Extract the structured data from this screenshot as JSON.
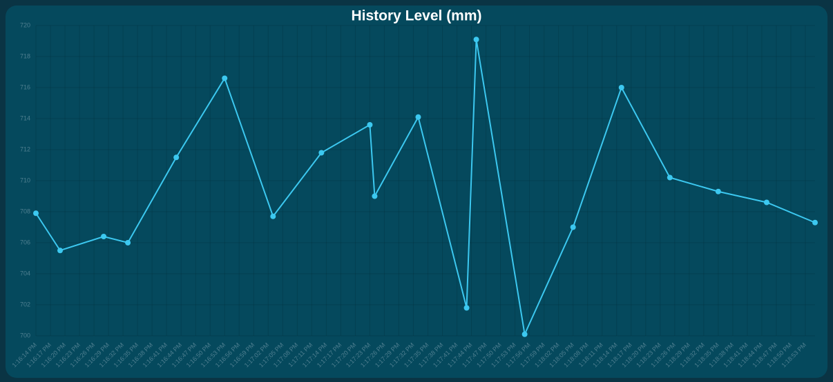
{
  "chart_data": {
    "type": "line",
    "title": "History Level (mm)",
    "x": [
      "1:16:14 PM",
      "1:16:19 PM",
      "1:16:28 PM",
      "1:16:33 PM",
      "1:16:43 PM",
      "1:16:53 PM",
      "1:17:03 PM",
      "1:17:13 PM",
      "1:17:23 PM",
      "1:17:24 PM",
      "1:17:33 PM",
      "1:17:43 PM",
      "1:17:45 PM",
      "1:17:55 PM",
      "1:18:05 PM",
      "1:18:15 PM",
      "1:18:25 PM",
      "1:18:35 PM",
      "1:18:45 PM",
      "1:18:55 PM"
    ],
    "values": [
      707.9,
      705.5,
      706.4,
      706.0,
      711.5,
      716.6,
      707.7,
      711.8,
      713.6,
      709.0,
      714.1,
      701.8,
      719.1,
      700.1,
      707.0,
      716.0,
      710.2,
      709.3,
      708.6,
      707.3
    ],
    "color": "#3cc8f0",
    "xlim": [
      "1:16:14 PM",
      "1:18:55 PM"
    ],
    "xticks": [
      "1:16:14 PM",
      "1:16:17 PM",
      "1:16:20 PM",
      "1:16:23 PM",
      "1:16:26 PM",
      "1:16:29 PM",
      "1:16:32 PM",
      "1:16:35 PM",
      "1:16:38 PM",
      "1:16:41 PM",
      "1:16:44 PM",
      "1:16:47 PM",
      "1:16:50 PM",
      "1:16:53 PM",
      "1:16:56 PM",
      "1:16:59 PM",
      "1:17:02 PM",
      "1:17:05 PM",
      "1:17:08 PM",
      "1:17:11 PM",
      "1:17:14 PM",
      "1:17:17 PM",
      "1:17:20 PM",
      "1:17:23 PM",
      "1:17:26 PM",
      "1:17:29 PM",
      "1:17:32 PM",
      "1:17:35 PM",
      "1:17:38 PM",
      "1:17:41 PM",
      "1:17:44 PM",
      "1:17:47 PM",
      "1:17:50 PM",
      "1:17:53 PM",
      "1:17:56 PM",
      "1:17:59 PM",
      "1:18:02 PM",
      "1:18:05 PM",
      "1:18:08 PM",
      "1:18:11 PM",
      "1:18:14 PM",
      "1:18:17 PM",
      "1:18:20 PM",
      "1:18:23 PM",
      "1:18:26 PM",
      "1:18:29 PM",
      "1:18:32 PM",
      "1:18:35 PM",
      "1:18:38 PM",
      "1:18:41 PM",
      "1:18:44 PM",
      "1:18:47 PM",
      "1:18:50 PM",
      "1:18:53 PM"
    ],
    "ylim": [
      700,
      720
    ],
    "yticks": [
      700,
      702,
      704,
      706,
      708,
      710,
      712,
      714,
      716,
      718,
      720
    ],
    "grid": true
  }
}
